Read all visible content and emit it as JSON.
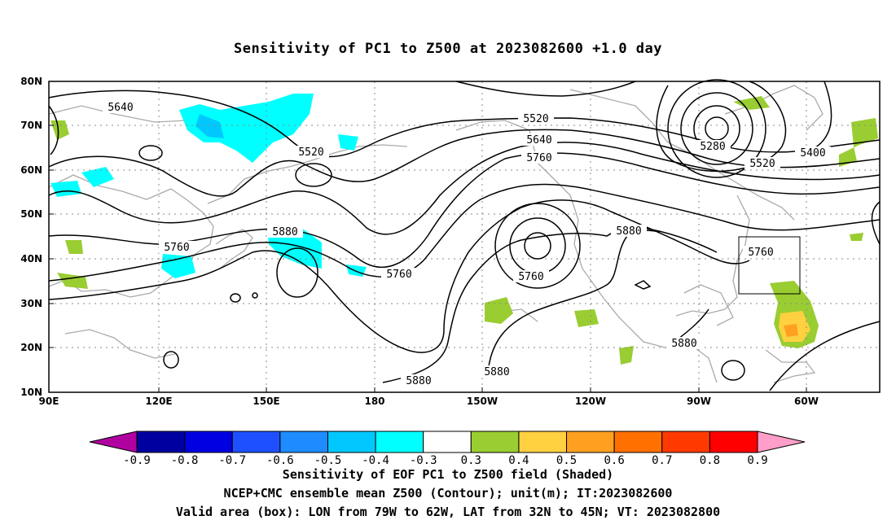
{
  "title": "Sensitivity of PC1 to Z500 at 2023082600 +1.0 day",
  "map": {
    "lat_ticks": [
      "10N",
      "20N",
      "30N",
      "40N",
      "50N",
      "60N",
      "70N",
      "80N"
    ],
    "lon_ticks": [
      "90E",
      "120E",
      "150E",
      "180",
      "150W",
      "120W",
      "90W",
      "60W"
    ],
    "contour_labels": [
      {
        "text": "5640",
        "kind": "isoheight"
      },
      {
        "text": "5520",
        "kind": "isoheight"
      },
      {
        "text": "5760",
        "kind": "isoheight"
      },
      {
        "text": "5880",
        "kind": "isoheight"
      },
      {
        "text": "5880",
        "kind": "isoheight"
      },
      {
        "text": "5760",
        "kind": "isoheight"
      },
      {
        "text": "5880",
        "kind": "isoheight"
      },
      {
        "text": "5520",
        "kind": "isoheight"
      },
      {
        "text": "5640",
        "kind": "isoheight"
      },
      {
        "text": "5760",
        "kind": "isoheight"
      },
      {
        "text": "5760",
        "kind": "isoheight"
      },
      {
        "text": "5880",
        "kind": "isoheight"
      },
      {
        "text": "5280",
        "kind": "isoheight"
      },
      {
        "text": "5400",
        "kind": "isoheight"
      },
      {
        "text": "5520",
        "kind": "isoheight"
      },
      {
        "text": "5760",
        "kind": "isoheight"
      },
      {
        "text": "5880",
        "kind": "isoheight"
      },
      {
        "text": "5880",
        "kind": "isoheight"
      }
    ],
    "valid_box": {
      "lon_west": "79W",
      "lon_east": "62W",
      "lat_south": "32N",
      "lat_north": "45N"
    }
  },
  "colorbar": {
    "labels": [
      "-0.9",
      "-0.8",
      "-0.7",
      "-0.6",
      "-0.5",
      "-0.4",
      "-0.3",
      "0.3",
      "0.4",
      "0.5",
      "0.6",
      "0.7",
      "0.8",
      "0.9"
    ],
    "colors": [
      "#0000a0",
      "#0000e0",
      "#1e50ff",
      "#1e8cff",
      "#00c8ff",
      "#00ffff",
      "#ffffff",
      "#9acd32",
      "#ffd040",
      "#ffa020",
      "#ff7000",
      "#ff3a00",
      "#ff0000"
    ],
    "low_color": "#b000a0",
    "high_color": "#ff9ec8"
  },
  "captions": [
    "Sensitivity of EOF PC1 to Z500 field (Shaded)",
    "NCEP+CMC ensemble mean Z500 (Contour); unit(m); IT:2023082600",
    "Valid area (box): LON from 79W to 62W, LAT from 32N to 45N; VT: 2023082800"
  ]
}
